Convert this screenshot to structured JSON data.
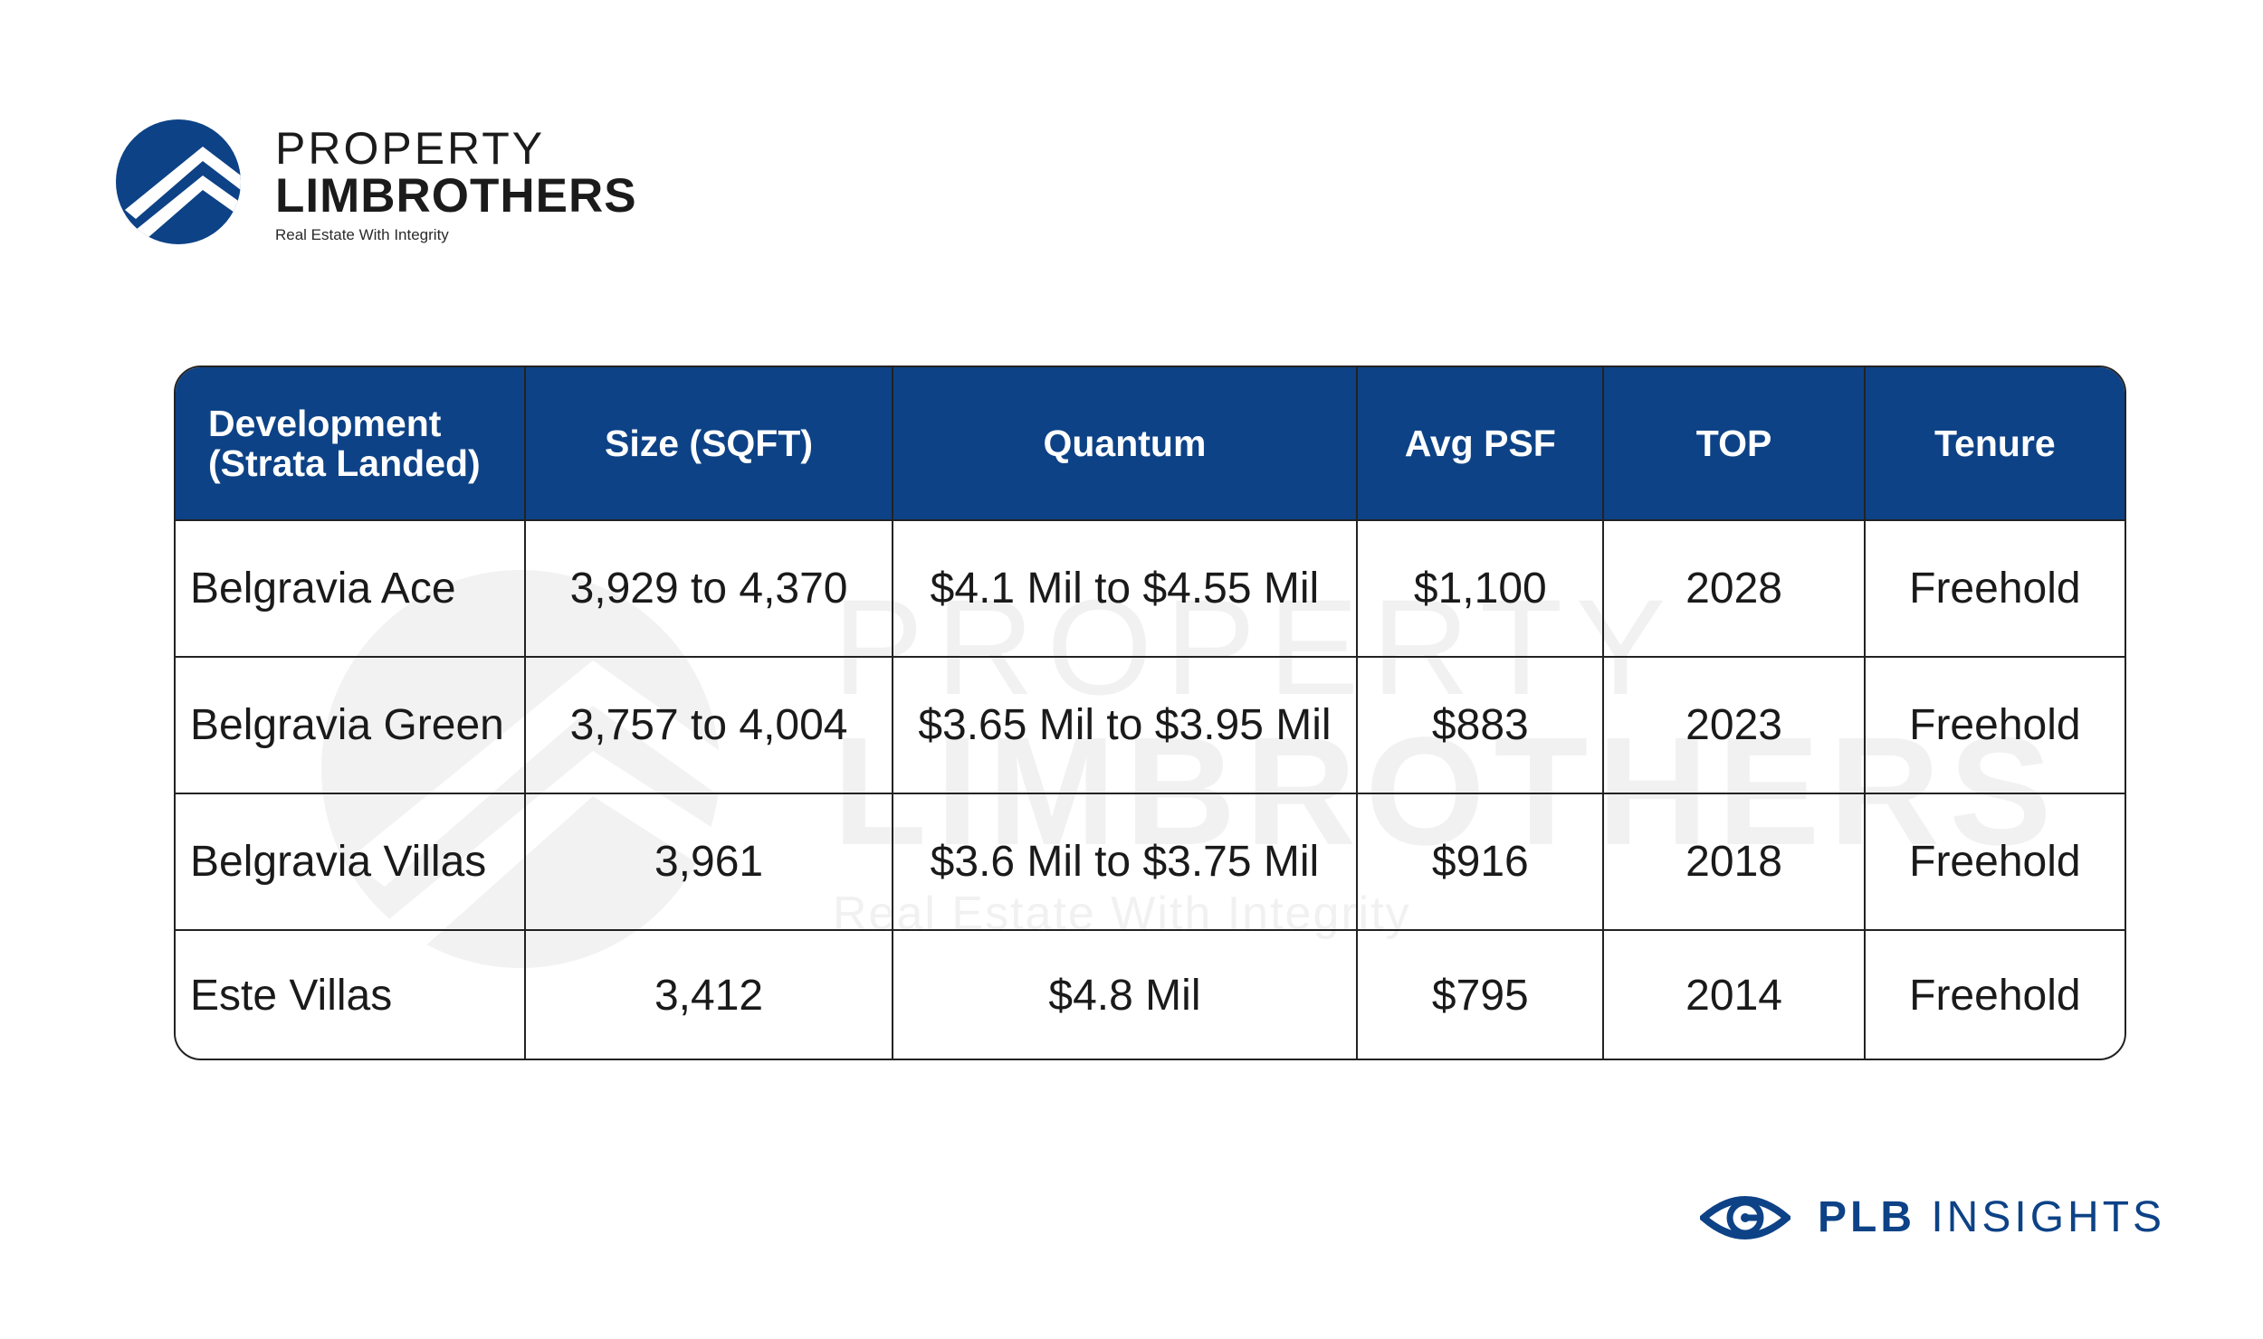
{
  "brand": {
    "line1": "PROPERTY",
    "line2": "LIMBROTHERS",
    "tagline": "Real Estate With Integrity",
    "logo_icon": "house-roof-logo-icon",
    "color": "#0d4286"
  },
  "watermark": {
    "line1": "PROPERTY",
    "line2": "LIMBROTHERS",
    "tagline": "Real Estate With Integrity"
  },
  "table": {
    "headers": {
      "development_line1": "Development",
      "development_line2": "(Strata Landed)",
      "size": "Size (SQFT)",
      "quantum": "Quantum",
      "avg_psf": "Avg PSF",
      "top": "TOP",
      "tenure": "Tenure"
    },
    "header_color": "#0d4286",
    "rows": [
      {
        "development": "Belgravia Ace",
        "size": "3,929 to 4,370",
        "quantum": "$4.1 Mil to $4.55 Mil",
        "avg_psf": "$1,100",
        "top": "2028",
        "tenure": "Freehold"
      },
      {
        "development": "Belgravia Green",
        "size": "3,757 to 4,004",
        "quantum": "$3.65 Mil to $3.95 Mil",
        "avg_psf": "$883",
        "top": "2023",
        "tenure": "Freehold"
      },
      {
        "development": "Belgravia Villas",
        "size": "3,961",
        "quantum": "$3.6 Mil to $3.75 Mil",
        "avg_psf": "$916",
        "top": "2018",
        "tenure": "Freehold"
      },
      {
        "development": "Este Villas",
        "size": "3,412",
        "quantum": "$4.8 Mil",
        "avg_psf": "$795",
        "top": "2014",
        "tenure": "Freehold"
      }
    ]
  },
  "footer": {
    "label_bold": "PLB",
    "label_rest": " INSIGHTS",
    "icon": "eye-icon"
  }
}
